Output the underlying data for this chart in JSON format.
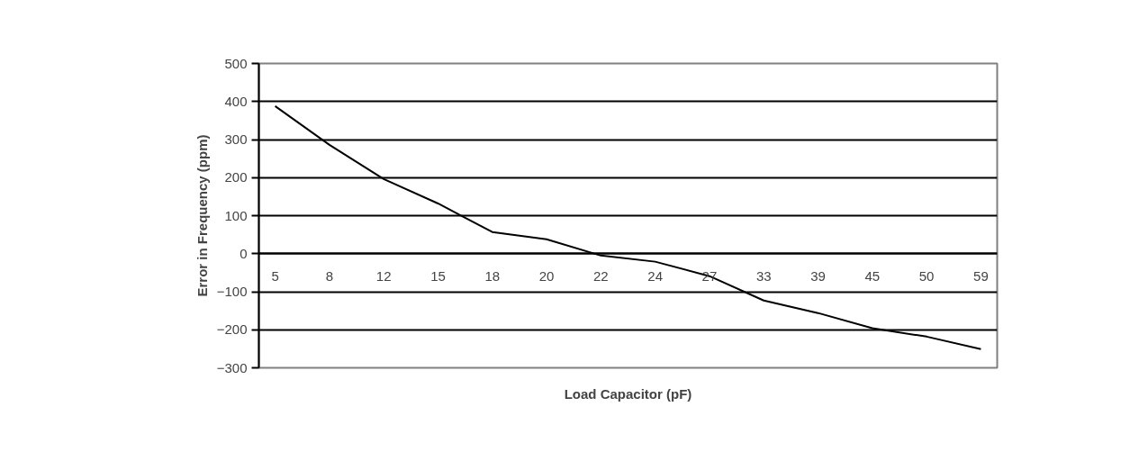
{
  "chart_data": {
    "type": "line",
    "xlabel": "Load Capacitor (pF)",
    "ylabel": "Error in Frequency (ppm)",
    "categories": [
      "5",
      "8",
      "12",
      "15",
      "18",
      "20",
      "22",
      "24",
      "27",
      "33",
      "39",
      "45",
      "50",
      "59"
    ],
    "series": [
      {
        "color": "#000000",
        "values": [
          388,
          286,
          196,
          132,
          57,
          38,
          -5,
          -21,
          -59,
          -123,
          -156,
          -196,
          -218,
          -251
        ]
      }
    ],
    "ylim": [
      -300,
      500
    ],
    "yticks": [
      -300,
      -200,
      -100,
      0,
      100,
      200,
      300,
      400,
      500
    ],
    "grid": "y",
    "marker": "none",
    "line_style": "solid"
  }
}
